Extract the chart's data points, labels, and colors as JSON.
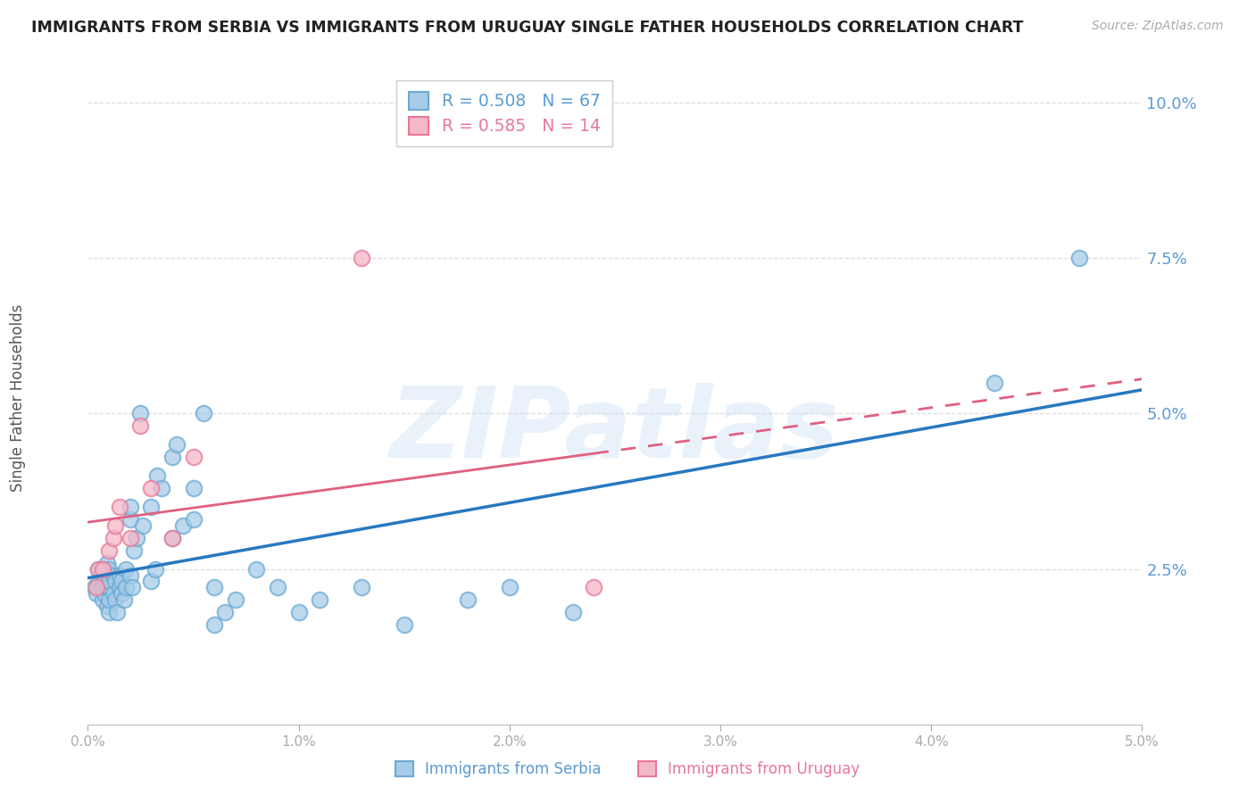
{
  "title": "IMMIGRANTS FROM SERBIA VS IMMIGRANTS FROM URUGUAY SINGLE FATHER HOUSEHOLDS CORRELATION CHART",
  "source": "Source: ZipAtlas.com",
  "ylabel": "Single Father Households",
  "xlim": [
    0.0,
    0.05
  ],
  "ylim": [
    0.0,
    0.105
  ],
  "xticks": [
    0.0,
    0.01,
    0.02,
    0.03,
    0.04,
    0.05
  ],
  "xticklabels": [
    "0.0%",
    "1.0%",
    "2.0%",
    "3.0%",
    "4.0%",
    "5.0%"
  ],
  "yticks": [
    0.025,
    0.05,
    0.075,
    0.1
  ],
  "yticklabels": [
    "2.5%",
    "5.0%",
    "7.5%",
    "10.0%"
  ],
  "serbia_R": 0.508,
  "serbia_N": 67,
  "uruguay_R": 0.585,
  "uruguay_N": 14,
  "serbia_color": "#a8cce8",
  "serbia_edge": "#6aaad4",
  "uruguay_color": "#f4b8c8",
  "uruguay_edge": "#e87898",
  "serbia_line_color": "#2878c0",
  "uruguay_line_color": "#e06080",
  "watermark": "ZIPatlas",
  "watermark_color": "#c8dff5",
  "y_tick_color": "#5b9bd5",
  "x_tick_color": "#aaaaaa",
  "title_color": "#222222",
  "source_color": "#aaaaaa",
  "grid_color": "#dddddd",
  "serbia_x": [
    0.0003,
    0.0004,
    0.0005,
    0.0005,
    0.0006,
    0.0006,
    0.0007,
    0.0007,
    0.0007,
    0.0008,
    0.0008,
    0.0008,
    0.0009,
    0.0009,
    0.0009,
    0.001,
    0.001,
    0.001,
    0.001,
    0.001,
    0.0012,
    0.0012,
    0.0013,
    0.0013,
    0.0014,
    0.0015,
    0.0015,
    0.0016,
    0.0016,
    0.0017,
    0.0018,
    0.0018,
    0.002,
    0.002,
    0.002,
    0.0021,
    0.0022,
    0.0023,
    0.0025,
    0.0026,
    0.003,
    0.003,
    0.0032,
    0.0033,
    0.0035,
    0.004,
    0.004,
    0.0042,
    0.0045,
    0.005,
    0.005,
    0.0055,
    0.006,
    0.006,
    0.0065,
    0.007,
    0.008,
    0.009,
    0.01,
    0.011,
    0.013,
    0.015,
    0.018,
    0.02,
    0.023,
    0.043,
    0.047
  ],
  "serbia_y": [
    0.022,
    0.021,
    0.023,
    0.025,
    0.022,
    0.024,
    0.02,
    0.022,
    0.024,
    0.021,
    0.023,
    0.025,
    0.019,
    0.022,
    0.026,
    0.018,
    0.02,
    0.022,
    0.023,
    0.025,
    0.021,
    0.024,
    0.02,
    0.023,
    0.018,
    0.022,
    0.024,
    0.021,
    0.023,
    0.02,
    0.022,
    0.025,
    0.024,
    0.033,
    0.035,
    0.022,
    0.028,
    0.03,
    0.05,
    0.032,
    0.023,
    0.035,
    0.025,
    0.04,
    0.038,
    0.03,
    0.043,
    0.045,
    0.032,
    0.038,
    0.033,
    0.05,
    0.016,
    0.022,
    0.018,
    0.02,
    0.025,
    0.022,
    0.018,
    0.02,
    0.022,
    0.016,
    0.02,
    0.022,
    0.018,
    0.055,
    0.075
  ],
  "uruguay_x": [
    0.0004,
    0.0005,
    0.0007,
    0.001,
    0.0012,
    0.0013,
    0.0015,
    0.002,
    0.0025,
    0.003,
    0.004,
    0.005,
    0.013,
    0.024
  ],
  "uruguay_y": [
    0.022,
    0.025,
    0.025,
    0.028,
    0.03,
    0.032,
    0.035,
    0.03,
    0.048,
    0.038,
    0.03,
    0.043,
    0.075,
    0.022
  ]
}
